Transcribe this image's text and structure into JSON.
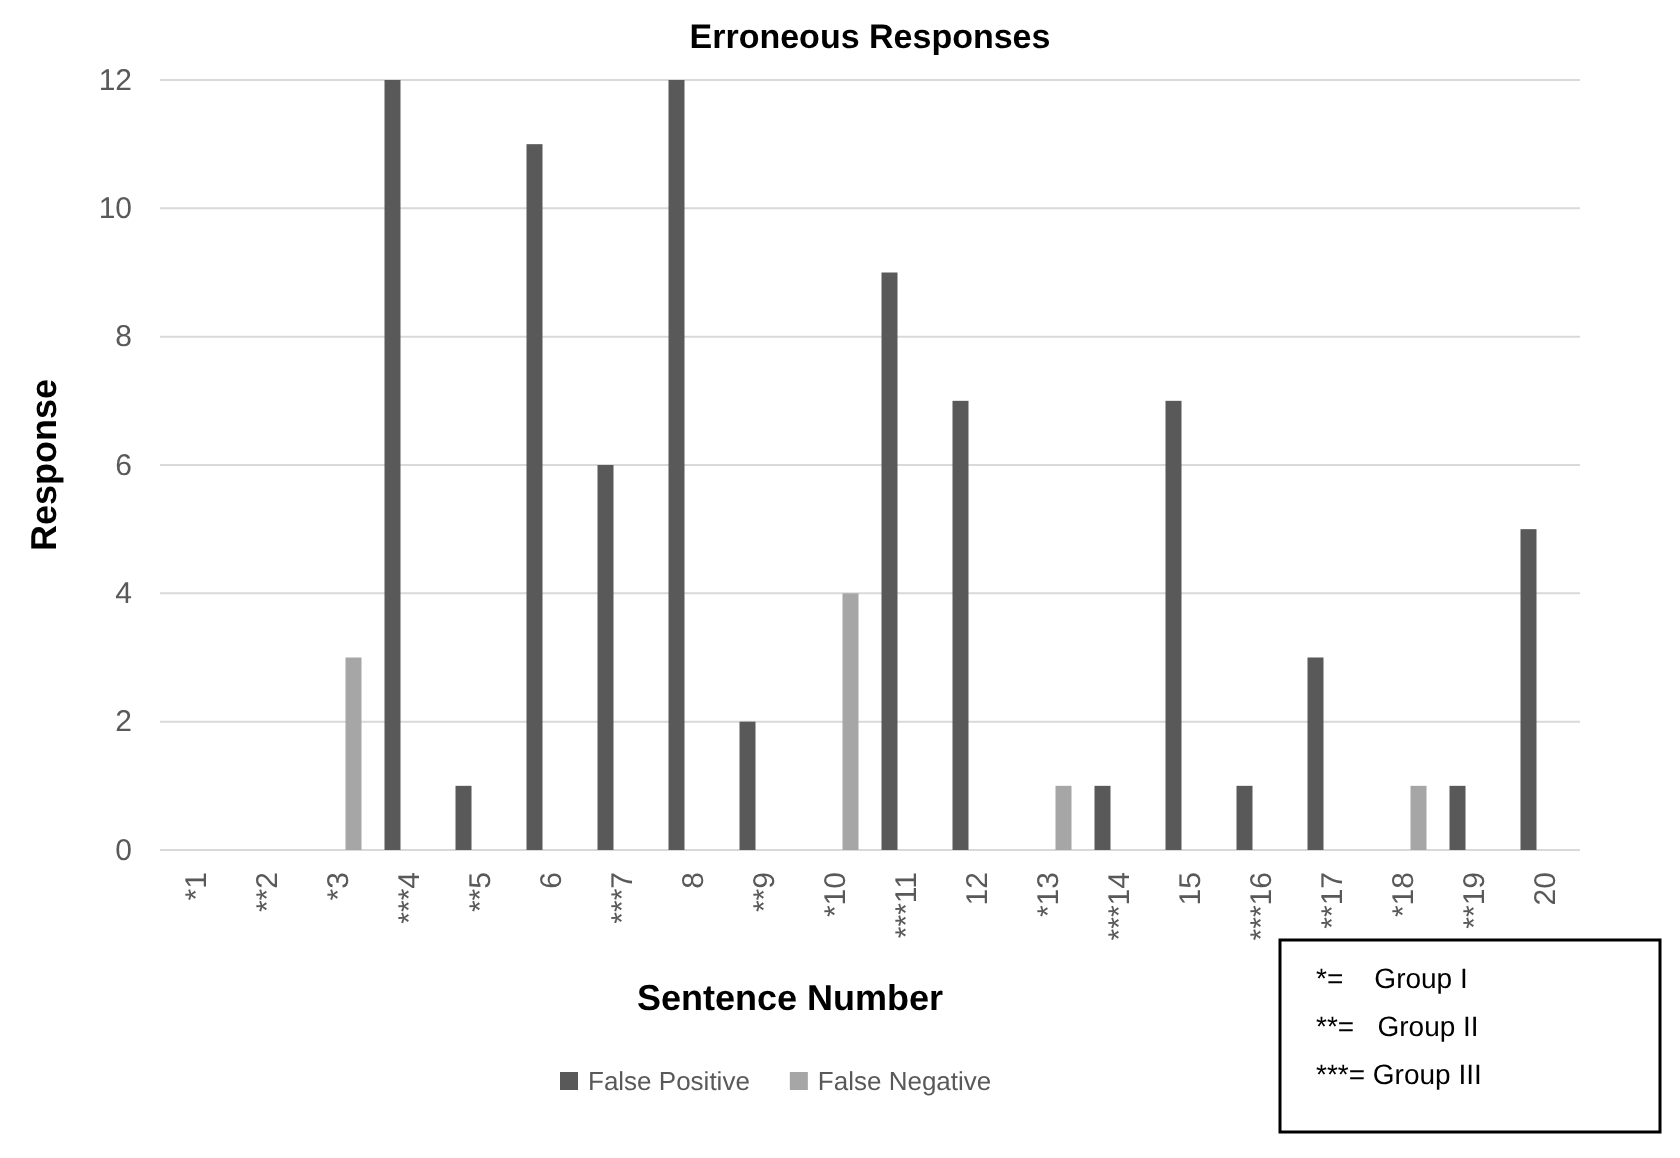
{
  "chart_data": {
    "type": "bar",
    "title": "Erroneous Responses",
    "xlabel": "Sentence Number",
    "ylabel": "Response",
    "categories": [
      "*1",
      "**2",
      "*3",
      "***4",
      "**5",
      "6",
      "***7",
      "8",
      "**9",
      "*10",
      "***11",
      "12",
      "*13",
      "***14",
      "15",
      "***16",
      "**17",
      "*18",
      "**19",
      "20"
    ],
    "series": [
      {
        "name": "False Positive",
        "color": "#595959",
        "values": [
          0,
          0,
          0,
          12,
          1,
          11,
          6,
          12,
          2,
          0,
          9,
          7,
          0,
          1,
          7,
          1,
          3,
          0,
          1,
          5
        ]
      },
      {
        "name": "False Negative",
        "color": "#a6a6a6",
        "values": [
          0,
          0,
          3,
          0,
          0,
          0,
          0,
          0,
          0,
          4,
          0,
          0,
          1,
          0,
          0,
          0,
          0,
          1,
          0,
          0
        ]
      }
    ],
    "ylim": [
      0,
      12
    ],
    "yticks": [
      0,
      2,
      4,
      6,
      8,
      10,
      12
    ],
    "grid": "y",
    "legend": "bottom",
    "annotations": [
      "*=    Group I",
      "**=   Group II",
      "***= Group III"
    ]
  }
}
